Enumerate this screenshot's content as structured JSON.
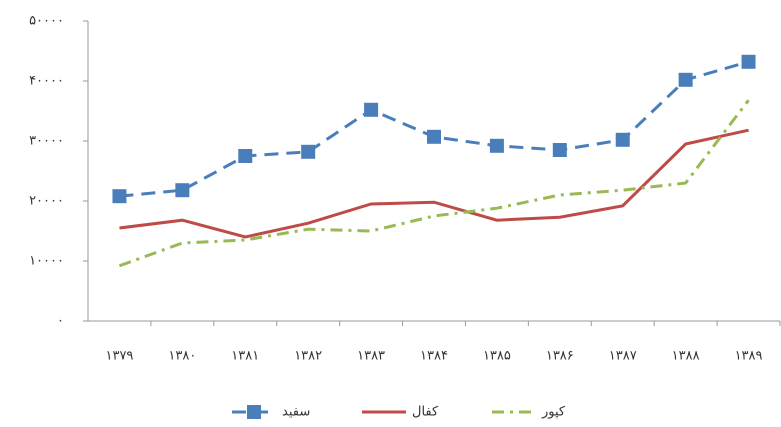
{
  "chart_data": {
    "type": "line",
    "categories": [
      "۱۳۷۹",
      "۱۳۸۰",
      "۱۳۸۱",
      "۱۳۸۲",
      "۱۳۸۳",
      "۱۳۸۴",
      "۱۳۸۵",
      "۱۳۸۶",
      "۱۳۸۷",
      "۱۳۸۸",
      "۱۳۸۹"
    ],
    "series": [
      {
        "name": "سفید",
        "color": "#4a7ebb",
        "style": "dashed-square",
        "values": [
          20800,
          21800,
          27500,
          28200,
          35200,
          30700,
          29200,
          28500,
          30200,
          40200,
          43200
        ]
      },
      {
        "name": "کفال",
        "color": "#be4b48",
        "style": "solid",
        "values": [
          15500,
          16800,
          14000,
          16300,
          19500,
          19800,
          16800,
          17300,
          19200,
          29500,
          31800
        ]
      },
      {
        "name": "کپور",
        "color": "#98b954",
        "style": "dash-dot",
        "values": [
          9200,
          13000,
          13500,
          15300,
          15000,
          17500,
          18800,
          21000,
          21800,
          23000,
          36800
        ]
      }
    ],
    "ylim": [
      0,
      50000
    ],
    "yticks": [
      {
        "value": 0,
        "label": "۰"
      },
      {
        "value": 10000,
        "label": "۱۰۰۰۰"
      },
      {
        "value": 20000,
        "label": "۲۰۰۰۰"
      },
      {
        "value": 30000,
        "label": "۳۰۰۰۰"
      },
      {
        "value": 40000,
        "label": "۴۰۰۰۰"
      },
      {
        "value": 50000,
        "label": "۵۰۰۰۰"
      }
    ],
    "grid": false
  }
}
